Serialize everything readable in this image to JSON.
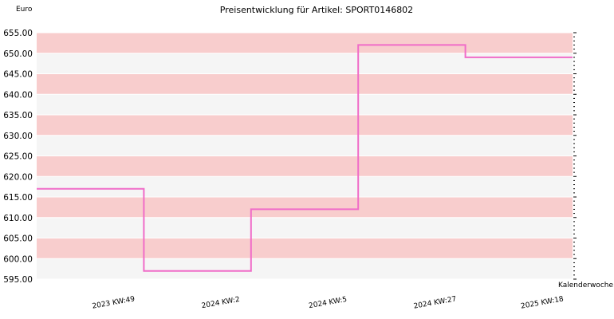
{
  "chart_data": {
    "type": "line",
    "step": true,
    "title": "Preisentwicklung für Artikel: SPORT0146802",
    "ylabel": "Euro",
    "xlabel": "Kalenderwoche",
    "ylim": [
      595,
      655
    ],
    "yticks": [
      "595.00",
      "600.00",
      "605.00",
      "610.00",
      "615.00",
      "620.00",
      "625.00",
      "630.00",
      "635.00",
      "640.00",
      "645.00",
      "650.00",
      "655.00"
    ],
    "categories": [
      "2023 KW:49",
      "2024 KW:2",
      "2024 KW:5",
      "2024 KW:27",
      "2025 KW:18"
    ],
    "series": [
      {
        "values": [
          617,
          597,
          612,
          652,
          649
        ],
        "color": "#f06cc8"
      }
    ],
    "band_colors": [
      "#f8cdcd",
      "#f5f5f5"
    ],
    "grid": true
  }
}
